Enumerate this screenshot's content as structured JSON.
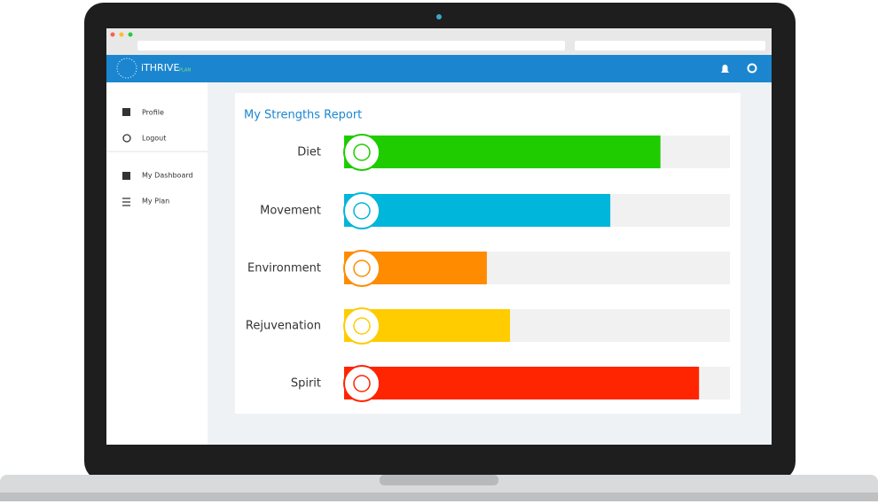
{
  "app": {
    "brand": "iTHRIVE",
    "brand_suffix": "PLAN",
    "menu": [
      "Profile",
      "Logout",
      "My Dashboard",
      "My Plan"
    ]
  },
  "chart_data": {
    "type": "bar",
    "orientation": "horizontal",
    "title": "My Strengths Report",
    "categories": [
      "Diet",
      "Movement",
      "Environment",
      "Rejuvenation",
      "Spirit"
    ],
    "values": [
      82,
      69,
      37,
      43,
      92
    ],
    "colors": [
      "#1fcc00",
      "#00b6da",
      "#ff8c00",
      "#ffcc00",
      "#ff2500"
    ],
    "xlim": [
      0,
      100
    ]
  }
}
